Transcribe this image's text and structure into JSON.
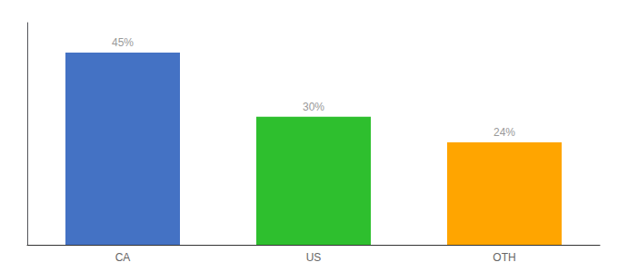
{
  "chart_data": {
    "type": "bar",
    "categories": [
      "CA",
      "US",
      "OTH"
    ],
    "values": [
      45,
      30,
      24
    ],
    "value_labels": [
      "45%",
      "30%",
      "24%"
    ],
    "colors": [
      "#4472C4",
      "#2EBF2E",
      "#FFA500"
    ],
    "ylim": [
      0,
      52
    ],
    "data_labels": true,
    "tick_labels": "x",
    "grid": false
  }
}
